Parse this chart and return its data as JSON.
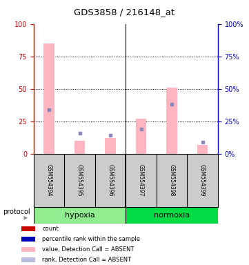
{
  "title": "GDS3858 / 216148_at",
  "samples": [
    "GSM554394",
    "GSM554395",
    "GSM554396",
    "GSM554397",
    "GSM554398",
    "GSM554399"
  ],
  "pink_bar_heights": [
    85,
    10,
    12,
    27,
    51,
    7
  ],
  "blue_square_values": [
    34,
    16,
    14,
    19,
    38,
    9
  ],
  "hypoxia_color_light": "#AAFFAA",
  "hypoxia_color": "#90EE90",
  "normoxia_color": "#00DD44",
  "protocol_label": "protocol",
  "ylim": [
    0,
    100
  ],
  "yticks": [
    0,
    25,
    50,
    75,
    100
  ],
  "left_axis_color": "#CC0000",
  "right_axis_color": "#0000BB",
  "pink_bar_color": "#FFB6C1",
  "blue_square_color": "#8888BB",
  "legend_items": [
    {
      "color": "#CC0000",
      "label": "count"
    },
    {
      "color": "#0000BB",
      "label": "percentile rank within the sample"
    },
    {
      "color": "#FFB6C1",
      "label": "value, Detection Call = ABSENT"
    },
    {
      "color": "#BBBBDD",
      "label": "rank, Detection Call = ABSENT"
    }
  ],
  "background_color": "#FFFFFF",
  "bar_area_color": "#CCCCCC",
  "sample_label_fontsize": 5.5,
  "title_fontsize": 9.5,
  "legend_fontsize": 6.0,
  "protocol_fontsize": 7.0,
  "group_label_fontsize": 8.0
}
